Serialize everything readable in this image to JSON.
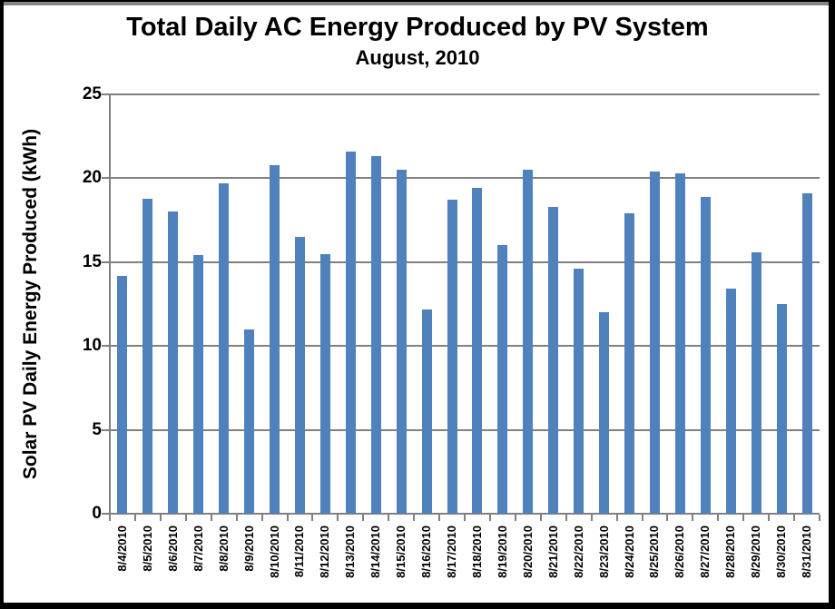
{
  "chart_data": {
    "type": "bar",
    "title": "Total Daily AC Energy Produced by PV System",
    "subtitle": "August, 2010",
    "ylabel": "Solar PV Daily Energy Produced (kWh)",
    "xlabel": "",
    "categories": [
      "8/4/2010",
      "8/5/2010",
      "8/6/2010",
      "8/7/2010",
      "8/8/2010",
      "8/9/2010",
      "8/10/2010",
      "8/11/2010",
      "8/12/2010",
      "8/13/2010",
      "8/14/2010",
      "8/15/2010",
      "8/16/2010",
      "8/17/2010",
      "8/18/2010",
      "8/19/2010",
      "8/20/2010",
      "8/21/2010",
      "8/22/2010",
      "8/23/2010",
      "8/24/2010",
      "8/25/2010",
      "8/26/2010",
      "8/27/2010",
      "8/28/2010",
      "8/29/2010",
      "8/30/2010",
      "8/31/2010"
    ],
    "values": [
      14.2,
      18.8,
      18.0,
      15.4,
      19.7,
      11.0,
      20.8,
      16.5,
      15.5,
      21.6,
      21.3,
      20.5,
      12.2,
      18.7,
      19.4,
      16.0,
      20.5,
      18.3,
      14.6,
      12.0,
      17.9,
      20.4,
      20.3,
      18.9,
      13.4,
      15.6,
      12.5,
      19.1
    ],
    "ylim": [
      0,
      25
    ],
    "ytick_step": 5,
    "yticks": [
      "0",
      "5",
      "10",
      "15",
      "20",
      "25"
    ],
    "grid": true,
    "legend": "none",
    "bar_color": "#4F81BD",
    "grid_color": "#808080",
    "axis_color": "#808080",
    "text_color": "#000000"
  }
}
